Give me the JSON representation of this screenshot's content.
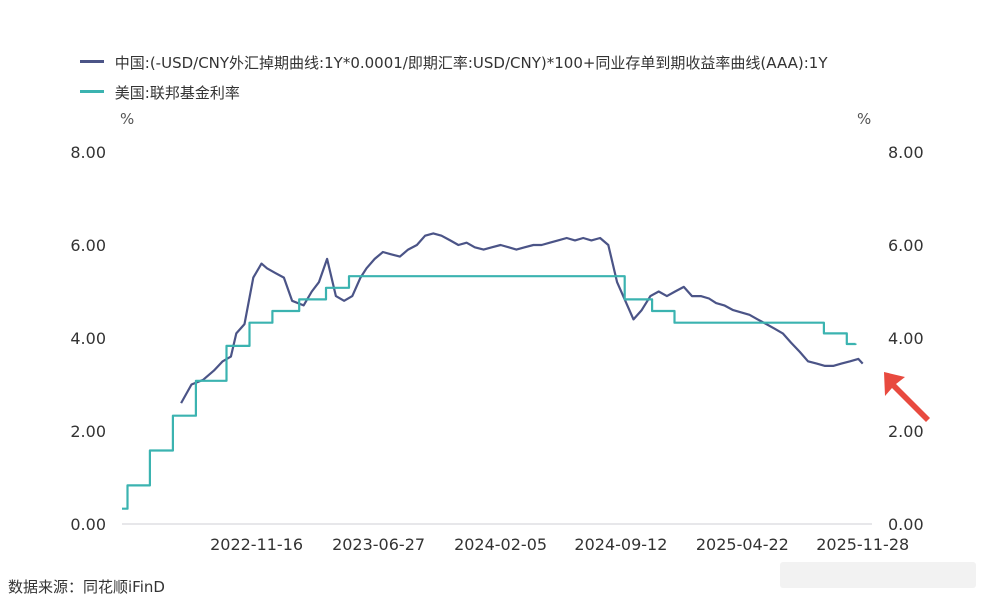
{
  "legend": {
    "items": [
      {
        "label": "中国:(-USD/CNY外汇掉期曲线:1Y*0.0001/即期汇率:USD/CNY)*100+同业存单到期收益率曲线(AAA):1Y",
        "color": "#4b5487"
      },
      {
        "label": "美国:联邦基金利率",
        "color": "#3bb3b0"
      }
    ]
  },
  "axes": {
    "unit_left": "%",
    "unit_right": "%"
  },
  "source": "数据来源：同花顺iFinD",
  "chart_data": {
    "type": "line",
    "x_ticks": [
      "2022-11-16",
      "2023-06-27",
      "2024-02-05",
      "2024-09-12",
      "2025-04-22",
      "2025-11-28"
    ],
    "y_ticks": [
      "0.00",
      "2.00",
      "4.00",
      "6.00",
      "8.00"
    ],
    "ylim": [
      0,
      8
    ],
    "xlim": [
      "2022-03-15",
      "2025-12-15"
    ],
    "grid": false,
    "legend_position": "top-left",
    "series": [
      {
        "name": "中国:(-USD/CNY外汇掉期曲线:1Y*0.0001/即期汇率:USD/CNY)*100+同业存单到期收益率曲线(AAA):1Y",
        "color": "#4b5487",
        "x": [
          "2022-07-01",
          "2022-07-20",
          "2022-08-10",
          "2022-08-30",
          "2022-09-15",
          "2022-09-30",
          "2022-10-10",
          "2022-10-25",
          "2022-11-10",
          "2022-11-25",
          "2022-12-05",
          "2022-12-20",
          "2023-01-05",
          "2023-01-20",
          "2023-02-10",
          "2023-02-25",
          "2023-03-10",
          "2023-03-25",
          "2023-04-10",
          "2023-04-25",
          "2023-05-10",
          "2023-05-25",
          "2023-06-05",
          "2023-06-20",
          "2023-07-05",
          "2023-07-20",
          "2023-08-05",
          "2023-08-20",
          "2023-09-05",
          "2023-09-20",
          "2023-10-05",
          "2023-10-20",
          "2023-11-05",
          "2023-11-20",
          "2023-12-05",
          "2023-12-20",
          "2024-01-05",
          "2024-01-20",
          "2024-02-05",
          "2024-02-20",
          "2024-03-05",
          "2024-03-20",
          "2024-04-05",
          "2024-04-20",
          "2024-05-05",
          "2024-05-20",
          "2024-06-05",
          "2024-06-20",
          "2024-07-05",
          "2024-07-20",
          "2024-08-05",
          "2024-08-20",
          "2024-09-05",
          "2024-09-20",
          "2024-10-05",
          "2024-10-20",
          "2024-11-05",
          "2024-11-20",
          "2024-12-05",
          "2024-12-20",
          "2025-01-05",
          "2025-01-20",
          "2025-02-05",
          "2025-02-20",
          "2025-03-05",
          "2025-03-20",
          "2025-04-05",
          "2025-04-20",
          "2025-05-05",
          "2025-05-20",
          "2025-06-05",
          "2025-06-20",
          "2025-07-05",
          "2025-07-20",
          "2025-08-05",
          "2025-08-20",
          "2025-09-05",
          "2025-09-20",
          "2025-10-05",
          "2025-10-20",
          "2025-11-05",
          "2025-11-20",
          "2025-11-28"
        ],
        "values": [
          2.6,
          3.0,
          3.1,
          3.3,
          3.5,
          3.6,
          4.1,
          4.3,
          5.3,
          5.6,
          5.5,
          5.4,
          5.3,
          4.8,
          4.7,
          5.0,
          5.2,
          5.7,
          4.9,
          4.8,
          4.9,
          5.3,
          5.5,
          5.7,
          5.85,
          5.8,
          5.75,
          5.9,
          6.0,
          6.2,
          6.25,
          6.2,
          6.1,
          6.0,
          6.05,
          5.95,
          5.9,
          5.95,
          6.0,
          5.95,
          5.9,
          5.95,
          6.0,
          6.0,
          6.05,
          6.1,
          6.15,
          6.1,
          6.15,
          6.1,
          6.15,
          6.0,
          5.2,
          4.8,
          4.4,
          4.6,
          4.9,
          5.0,
          4.9,
          5.0,
          5.1,
          4.9,
          4.9,
          4.85,
          4.75,
          4.7,
          4.6,
          4.55,
          4.5,
          4.4,
          4.3,
          4.2,
          4.1,
          3.9,
          3.7,
          3.5,
          3.45,
          3.4,
          3.4,
          3.45,
          3.5,
          3.55,
          3.45
        ]
      },
      {
        "name": "美国:联邦基金利率",
        "color": "#3bb3b0",
        "x": [
          "2022-03-15",
          "2022-03-25",
          "2022-05-05",
          "2022-06-16",
          "2022-07-28",
          "2022-09-22",
          "2022-11-03",
          "2022-12-15",
          "2023-02-02",
          "2023-03-23",
          "2023-05-04",
          "2023-07-27",
          "2024-09-19",
          "2024-11-08",
          "2024-12-19",
          "2025-09-18",
          "2025-10-30",
          "2025-11-15"
        ],
        "values": [
          0.33,
          0.83,
          1.58,
          2.33,
          3.08,
          3.83,
          4.33,
          4.58,
          4.83,
          5.08,
          5.33,
          5.33,
          4.83,
          4.58,
          4.33,
          4.1,
          3.87,
          3.88
        ]
      }
    ]
  }
}
